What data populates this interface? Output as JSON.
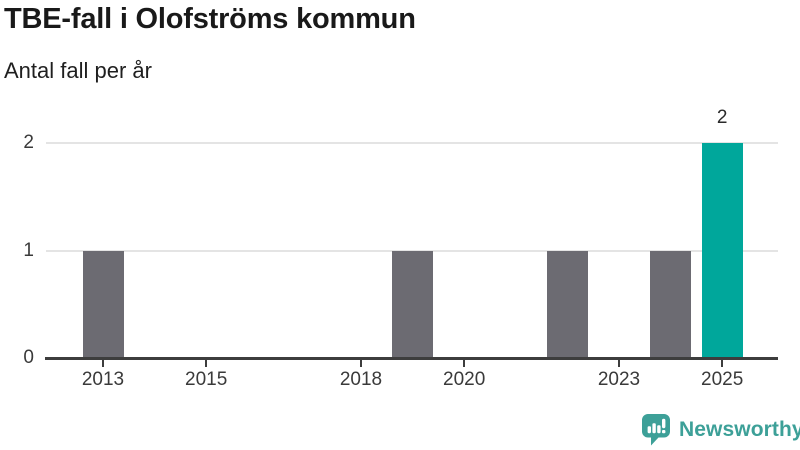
{
  "header": {
    "title": "TBE-fall i Olofströms kommun",
    "subtitle": "Antal fall per år"
  },
  "chart_data": {
    "type": "bar",
    "title": "TBE-fall i Olofströms kommun",
    "ylabel": "Antal fall per år",
    "categories": [
      2013,
      2014,
      2015,
      2016,
      2017,
      2018,
      2019,
      2020,
      2021,
      2022,
      2023,
      2024,
      2025
    ],
    "values": [
      1,
      0,
      0,
      0,
      0,
      0,
      1,
      0,
      0,
      1,
      0,
      1,
      2
    ],
    "highlight_category": 2025,
    "value_label": {
      "category": 2025,
      "text": "2"
    },
    "x_tick_labels": [
      "2013",
      "2015",
      "2018",
      "2020",
      "2023",
      "2025"
    ],
    "y_ticks": [
      0,
      1,
      2
    ],
    "ylim": [
      0,
      2
    ],
    "grid": true,
    "legend_position": "none",
    "colors": {
      "bar": "#6c6b72",
      "highlight_bar": "#00a79b",
      "grid": "#e4e4e4",
      "axis": "#3d3d3d"
    }
  },
  "footer": {
    "brand": "Newsworthy",
    "logo_color": "#3da098"
  }
}
